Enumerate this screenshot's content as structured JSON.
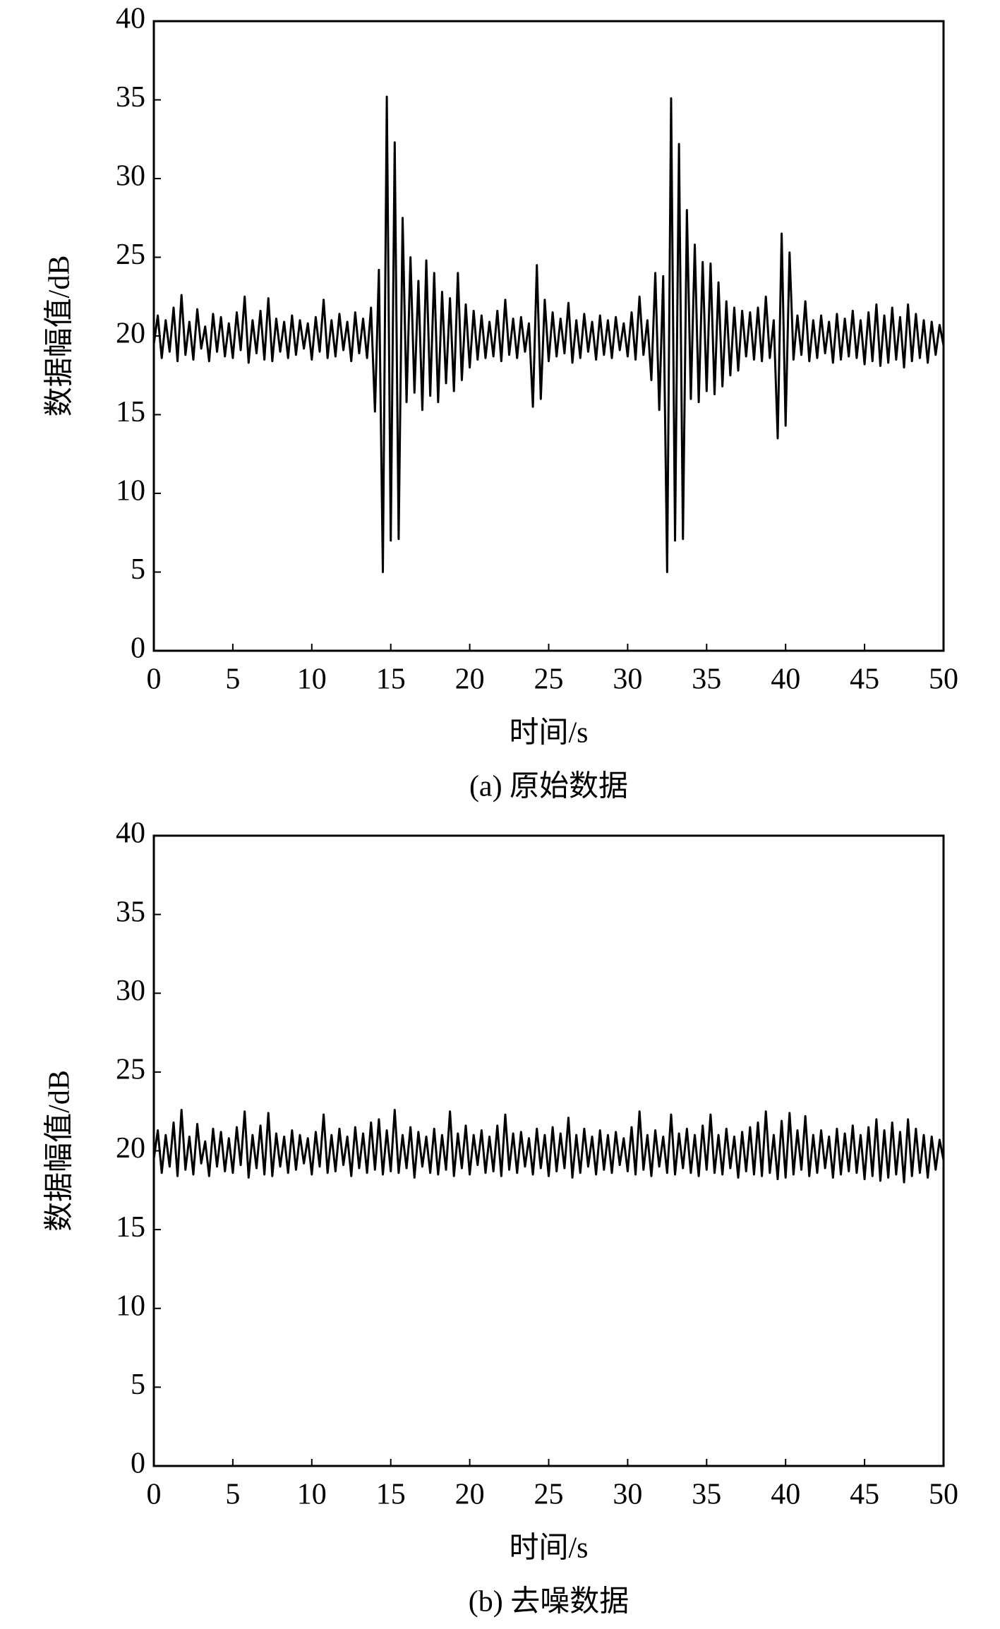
{
  "chart_data": [
    {
      "type": "line",
      "title": "(a) 原始数据",
      "xlabel": "时间/s",
      "ylabel": "数据幅值/dB",
      "color": "#000000",
      "x": [
        0,
        0.25,
        0.5,
        0.75,
        1,
        1.25,
        1.5,
        1.75,
        2,
        2.25,
        2.5,
        2.75,
        3,
        3.25,
        3.5,
        3.75,
        4,
        4.25,
        4.5,
        4.75,
        5,
        5.25,
        5.5,
        5.75,
        6,
        6.25,
        6.5,
        6.75,
        7,
        7.25,
        7.5,
        7.75,
        8,
        8.25,
        8.5,
        8.75,
        9,
        9.25,
        9.5,
        9.75,
        10,
        10.25,
        10.5,
        10.75,
        11,
        11.25,
        11.5,
        11.75,
        12,
        12.25,
        12.5,
        12.75,
        13,
        13.25,
        13.5,
        13.75,
        14,
        14.25,
        14.5,
        14.75,
        15,
        15.25,
        15.5,
        15.75,
        16,
        16.25,
        16.5,
        16.75,
        17,
        17.25,
        17.5,
        17.75,
        18,
        18.25,
        18.5,
        18.75,
        19,
        19.25,
        19.5,
        19.75,
        20,
        20.25,
        20.5,
        20.75,
        21,
        21.25,
        21.5,
        21.75,
        22,
        22.25,
        22.5,
        22.75,
        23,
        23.25,
        23.5,
        23.75,
        24,
        24.25,
        24.5,
        24.75,
        25,
        25.25,
        25.5,
        25.75,
        26,
        26.25,
        26.5,
        26.75,
        27,
        27.25,
        27.5,
        27.75,
        28,
        28.25,
        28.5,
        28.75,
        29,
        29.25,
        29.5,
        29.75,
        30,
        30.25,
        30.5,
        30.75,
        31,
        31.25,
        31.5,
        31.75,
        32,
        32.25,
        32.5,
        32.75,
        33,
        33.25,
        33.5,
        33.75,
        34,
        34.25,
        34.5,
        34.75,
        35,
        35.25,
        35.5,
        35.75,
        36,
        36.25,
        36.5,
        36.75,
        37,
        37.25,
        37.5,
        37.75,
        38,
        38.25,
        38.5,
        38.75,
        39,
        39.25,
        39.5,
        39.75,
        40,
        40.25,
        40.5,
        40.75,
        41,
        41.25,
        41.5,
        41.75,
        42,
        42.25,
        42.5,
        42.75,
        43,
        43.25,
        43.5,
        43.75,
        44,
        44.25,
        44.5,
        44.75,
        45,
        45.25,
        45.5,
        45.75,
        46,
        46.25,
        46.5,
        46.75,
        47,
        47.25,
        47.5,
        47.75,
        48,
        48.25,
        48.5,
        48.75,
        49,
        49.25,
        49.5,
        49.75,
        50
      ],
      "values": [
        19.5,
        21.3,
        18.6,
        21.0,
        19.0,
        21.8,
        18.4,
        22.6,
        18.8,
        20.9,
        18.5,
        21.7,
        19.2,
        20.6,
        18.4,
        21.4,
        19.0,
        21.2,
        18.7,
        20.8,
        18.6,
        21.5,
        19.1,
        22.5,
        18.3,
        21.0,
        18.9,
        21.6,
        18.5,
        22.4,
        18.4,
        21.1,
        19.0,
        20.9,
        18.6,
        21.3,
        18.8,
        21.0,
        19.2,
        20.8,
        18.5,
        21.2,
        19.0,
        22.3,
        18.6,
        21.0,
        18.7,
        21.4,
        19.1,
        20.9,
        18.4,
        21.5,
        18.9,
        21.1,
        18.6,
        21.8,
        15.2,
        24.2,
        5.0,
        35.2,
        7.0,
        32.3,
        7.1,
        27.5,
        15.8,
        25.0,
        16.4,
        23.5,
        15.3,
        24.8,
        16.2,
        24.0,
        15.8,
        22.8,
        17.0,
        22.4,
        16.5,
        24.0,
        17.2,
        22.0,
        18.0,
        21.6,
        18.5,
        21.3,
        18.6,
        20.9,
        18.7,
        21.6,
        18.4,
        22.3,
        18.8,
        21.1,
        18.6,
        21.2,
        19.0,
        20.8,
        15.5,
        24.5,
        16.0,
        22.3,
        18.4,
        21.5,
        18.7,
        21.1,
        18.9,
        22.1,
        18.3,
        21.0,
        18.6,
        21.4,
        19.0,
        20.9,
        18.5,
        21.3,
        18.8,
        21.0,
        18.6,
        21.2,
        19.1,
        20.8,
        18.7,
        21.5,
        18.5,
        22.5,
        18.8,
        21.0,
        17.2,
        24.0,
        15.3,
        23.8,
        5.0,
        35.1,
        7.0,
        32.2,
        7.1,
        28.0,
        16.0,
        25.8,
        15.8,
        24.7,
        16.5,
        24.6,
        16.3,
        23.4,
        16.8,
        22.2,
        17.5,
        21.8,
        17.8,
        21.6,
        18.7,
        21.5,
        18.5,
        21.8,
        18.4,
        22.5,
        18.6,
        21.0,
        13.5,
        26.5,
        14.3,
        25.3,
        18.5,
        21.3,
        18.8,
        22.2,
        18.4,
        21.0,
        18.6,
        21.3,
        18.9,
        20.9,
        18.3,
        21.4,
        18.5,
        21.1,
        18.7,
        21.6,
        18.6,
        21.0,
        18.2,
        21.5,
        18.4,
        22.0,
        18.1,
        21.3,
        18.3,
        21.8,
        18.5,
        21.2,
        18.0,
        22.0,
        18.4,
        21.4,
        18.6,
        21.0,
        18.3,
        20.9,
        18.8,
        20.7,
        19.4
      ],
      "xlim": [
        0,
        50
      ],
      "ylim": [
        0,
        40
      ],
      "xticks": [
        0,
        5,
        10,
        15,
        20,
        25,
        30,
        35,
        40,
        45,
        50
      ],
      "yticks": [
        0,
        5,
        10,
        15,
        20,
        25,
        30,
        35,
        40
      ]
    },
    {
      "type": "line",
      "title": "(b) 去噪数据",
      "xlabel": "时间/s",
      "ylabel": "数据幅值/dB",
      "color": "#000000",
      "x": [
        0,
        0.25,
        0.5,
        0.75,
        1,
        1.25,
        1.5,
        1.75,
        2,
        2.25,
        2.5,
        2.75,
        3,
        3.25,
        3.5,
        3.75,
        4,
        4.25,
        4.5,
        4.75,
        5,
        5.25,
        5.5,
        5.75,
        6,
        6.25,
        6.5,
        6.75,
        7,
        7.25,
        7.5,
        7.75,
        8,
        8.25,
        8.5,
        8.75,
        9,
        9.25,
        9.5,
        9.75,
        10,
        10.25,
        10.5,
        10.75,
        11,
        11.25,
        11.5,
        11.75,
        12,
        12.25,
        12.5,
        12.75,
        13,
        13.25,
        13.5,
        13.75,
        14,
        14.25,
        14.5,
        14.75,
        15,
        15.25,
        15.5,
        15.75,
        16,
        16.25,
        16.5,
        16.75,
        17,
        17.25,
        17.5,
        17.75,
        18,
        18.25,
        18.5,
        18.75,
        19,
        19.25,
        19.5,
        19.75,
        20,
        20.25,
        20.5,
        20.75,
        21,
        21.25,
        21.5,
        21.75,
        22,
        22.25,
        22.5,
        22.75,
        23,
        23.25,
        23.5,
        23.75,
        24,
        24.25,
        24.5,
        24.75,
        25,
        25.25,
        25.5,
        25.75,
        26,
        26.25,
        26.5,
        26.75,
        27,
        27.25,
        27.5,
        27.75,
        28,
        28.25,
        28.5,
        28.75,
        29,
        29.25,
        29.5,
        29.75,
        30,
        30.25,
        30.5,
        30.75,
        31,
        31.25,
        31.5,
        31.75,
        32,
        32.25,
        32.5,
        32.75,
        33,
        33.25,
        33.5,
        33.75,
        34,
        34.25,
        34.5,
        34.75,
        35,
        35.25,
        35.5,
        35.75,
        36,
        36.25,
        36.5,
        36.75,
        37,
        37.25,
        37.5,
        37.75,
        38,
        38.25,
        38.5,
        38.75,
        39,
        39.25,
        39.5,
        39.75,
        40,
        40.25,
        40.5,
        40.75,
        41,
        41.25,
        41.5,
        41.75,
        42,
        42.25,
        42.5,
        42.75,
        43,
        43.25,
        43.5,
        43.75,
        44,
        44.25,
        44.5,
        44.75,
        45,
        45.25,
        45.5,
        45.75,
        46,
        46.25,
        46.5,
        46.75,
        47,
        47.25,
        47.5,
        47.75,
        48,
        48.25,
        48.5,
        48.75,
        49,
        49.25,
        49.5,
        49.75,
        50
      ],
      "values": [
        19.5,
        21.3,
        18.6,
        21.0,
        19.0,
        21.8,
        18.4,
        22.6,
        18.8,
        20.9,
        18.5,
        21.7,
        19.2,
        20.6,
        18.4,
        21.4,
        19.0,
        21.2,
        18.7,
        20.8,
        18.6,
        21.5,
        19.1,
        22.5,
        18.3,
        21.0,
        18.9,
        21.6,
        18.5,
        22.4,
        18.4,
        21.1,
        19.0,
        20.9,
        18.6,
        21.3,
        18.8,
        21.0,
        19.2,
        20.8,
        18.5,
        21.2,
        19.0,
        22.3,
        18.6,
        21.0,
        18.7,
        21.4,
        19.1,
        20.9,
        18.4,
        21.5,
        18.9,
        21.1,
        18.6,
        21.8,
        18.8,
        22.0,
        18.5,
        21.3,
        18.7,
        22.6,
        18.6,
        21.0,
        18.9,
        21.5,
        18.3,
        21.2,
        19.0,
        20.9,
        18.6,
        21.4,
        18.5,
        21.0,
        18.8,
        22.5,
        18.4,
        21.1,
        18.9,
        21.6,
        18.5,
        21.0,
        19.1,
        21.3,
        18.6,
        20.9,
        18.7,
        21.6,
        18.4,
        22.3,
        18.8,
        21.1,
        18.6,
        21.2,
        19.0,
        20.8,
        18.5,
        21.4,
        18.9,
        21.0,
        18.4,
        21.5,
        18.7,
        21.1,
        18.9,
        22.1,
        18.3,
        21.0,
        18.6,
        21.4,
        19.0,
        20.9,
        18.5,
        21.3,
        18.8,
        21.0,
        18.6,
        21.2,
        19.1,
        20.8,
        18.7,
        21.5,
        18.5,
        22.5,
        18.8,
        21.0,
        18.4,
        21.3,
        19.0,
        20.9,
        18.6,
        22.3,
        18.5,
        21.1,
        18.9,
        21.4,
        18.6,
        21.0,
        18.4,
        21.6,
        18.8,
        22.3,
        18.6,
        21.0,
        18.5,
        21.4,
        18.9,
        20.9,
        18.3,
        21.2,
        18.7,
        21.5,
        18.5,
        21.8,
        18.4,
        22.5,
        18.6,
        21.0,
        18.2,
        21.9,
        18.3,
        22.4,
        18.5,
        21.3,
        18.8,
        22.2,
        18.4,
        21.0,
        18.6,
        21.3,
        18.9,
        20.9,
        18.3,
        21.4,
        18.5,
        21.1,
        18.7,
        21.6,
        18.6,
        21.0,
        18.2,
        21.5,
        18.4,
        22.0,
        18.1,
        21.3,
        18.3,
        21.8,
        18.5,
        21.2,
        18.0,
        22.0,
        18.4,
        21.4,
        18.6,
        21.0,
        18.3,
        20.9,
        18.8,
        20.7,
        19.4
      ],
      "xlim": [
        0,
        50
      ],
      "ylim": [
        0,
        40
      ],
      "xticks": [
        0,
        5,
        10,
        15,
        20,
        25,
        30,
        35,
        40,
        45,
        50
      ],
      "yticks": [
        0,
        5,
        10,
        15,
        20,
        25,
        30,
        35,
        40
      ]
    }
  ]
}
